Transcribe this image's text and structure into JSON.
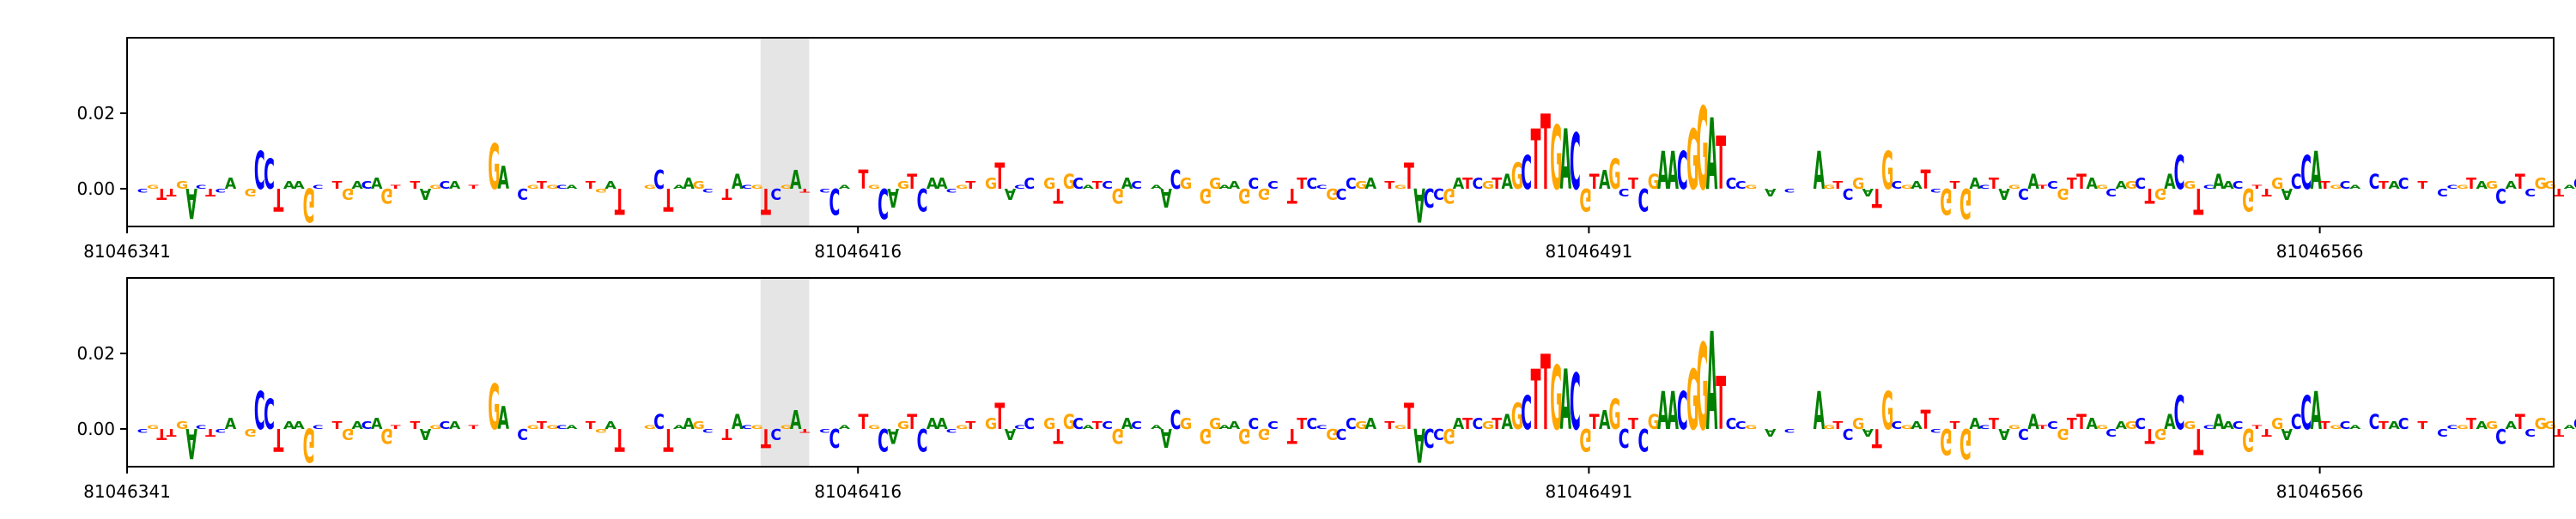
{
  "chart_data": [
    {
      "type": "sequence-logo",
      "ylim": [
        -0.01,
        0.04
      ],
      "yticks": [
        0.0,
        0.02
      ],
      "ytick_labels": [
        "0.00",
        "0.02"
      ],
      "xlim": [
        81046341,
        81046590
      ],
      "xticks": [
        81046341,
        81046416,
        81046491,
        81046566
      ],
      "xtick_labels": [
        "81046341",
        "81046416",
        "81046491",
        "81046566"
      ],
      "highlight_region": [
        81046406,
        81046411
      ],
      "sequence": "ACGTTGACTCATGCCTAAGCTTGACAGTCTAGCATTCGAACGTGCACTGATCGGCTAAGCTTACGTCGATGCCATTGCAGTCAACGTGGTACCAGTGCATCGACAAACGGGGAAGCGCTTTCCGCCGACTGTACCGATCGTAGCTTGACGTAGCTCGAACGGATCCGTAGCTCAGTCGATGCGATCGTGACTAGCATCGTTAGCAGCTGACGTCAACGTTGACCATGCAGCTACGTACCGTAGCATCGGTACC",
      "contributions": [
        0.0,
        -0.001,
        0.001,
        -0.003,
        -0.002,
        0.002,
        -0.008,
        0.001,
        -0.002,
        -0.001,
        0.003,
        0.0,
        -0.002,
        0.01,
        0.008,
        -0.006,
        0.002,
        0.002,
        -0.009,
        0.001,
        0.0,
        0.002,
        -0.003,
        0.002,
        0.002,
        0.003,
        -0.004,
        0.001,
        0.0,
        0.002,
        -0.003,
        0.001,
        0.002,
        0.002,
        0.0,
        0.001,
        0.0,
        0.012,
        0.006,
        0.0,
        -0.003,
        0.001,
        0.002,
        0.001,
        0.001,
        0.001,
        0.0,
        0.002,
        -0.001,
        0.002,
        -0.007,
        0.0,
        0.0,
        0.001,
        0.005,
        -0.006,
        0.001,
        0.003,
        0.002,
        -0.001,
        0.0,
        -0.003,
        0.004,
        0.001,
        0.001,
        -0.007,
        -0.003,
        0.001,
        0.005,
        -0.001,
        0.0,
        -0.001,
        -0.007,
        0.001,
        0.0,
        0.005,
        0.001,
        -0.008,
        -0.005,
        0.002,
        0.004,
        -0.006,
        0.003,
        0.003,
        -0.001,
        0.001,
        0.002,
        0.0,
        0.003,
        0.007,
        -0.003,
        0.001,
        0.003,
        0.0,
        0.003,
        -0.004,
        0.004,
        0.003,
        0.001,
        0.002,
        0.002,
        -0.004,
        0.003,
        0.002,
        0.0,
        0.001,
        -0.005,
        0.005,
        0.003,
        0.0,
        -0.004,
        0.003,
        0.001,
        0.002,
        -0.004,
        0.003,
        -0.003,
        0.002,
        0.0,
        -0.004,
        0.003,
        0.003,
        0.001,
        -0.003,
        -0.003,
        0.003,
        0.002,
        0.003,
        0.0,
        0.002,
        0.001,
        0.007,
        -0.009,
        -0.005,
        -0.003,
        -0.004,
        0.003,
        0.003,
        0.003,
        0.002,
        0.003,
        0.004,
        0.007,
        0.009,
        0.016,
        0.02,
        0.017,
        0.016,
        0.015,
        -0.006,
        0.004,
        0.005,
        0.008,
        -0.002,
        0.003,
        -0.006,
        0.004,
        0.01,
        0.01,
        0.01,
        0.016,
        0.022,
        0.019,
        0.014,
        0.003,
        0.002,
        0.001,
        0.0,
        -0.002,
        0.0,
        -0.001,
        0.0,
        0.0,
        0.01,
        0.001,
        0.002,
        -0.003,
        0.003,
        -0.002,
        -0.005,
        0.01,
        0.002,
        0.001,
        0.002,
        0.005,
        -0.001,
        -0.007,
        0.002,
        -0.008,
        0.003,
        0.001,
        0.003,
        -0.003,
        0.001,
        -0.003,
        0.004,
        0.001,
        0.002,
        -0.003,
        0.003,
        0.004,
        0.003,
        0.001,
        -0.002,
        0.002,
        0.002,
        0.003,
        -0.004,
        -0.003,
        0.004,
        0.009,
        0.002,
        -0.007,
        0.001,
        0.004,
        0.002,
        0.002,
        -0.006,
        0.001,
        -0.002,
        0.003,
        -0.003,
        0.004,
        0.009,
        0.01,
        0.002,
        0.001,
        0.002,
        0.001,
        0.0,
        0.004,
        0.002,
        0.002,
        0.003,
        0.0,
        0.002,
        0.0,
        -0.002,
        0.001,
        0.001,
        0.003,
        0.002,
        0.002,
        -0.004,
        0.002,
        0.004,
        -0.002,
        0.003,
        0.002,
        -0.002,
        0.001,
        0.003,
        0.002,
        0.002,
        0.003,
        -0.002
      ]
    },
    {
      "type": "sequence-logo",
      "ylim": [
        -0.01,
        0.04
      ],
      "yticks": [
        0.0,
        0.02
      ],
      "ytick_labels": [
        "0.00",
        "0.02"
      ],
      "xlim": [
        81046341,
        81046590
      ],
      "xticks": [
        81046341,
        81046416,
        81046491,
        81046566
      ],
      "xtick_labels": [
        "81046341",
        "81046416",
        "81046491",
        "81046566"
      ],
      "highlight_region": [
        81046406,
        81046411
      ],
      "sequence": "ACGTTGACTCATGCCTAAGCTTGACAGTCTAGCATTCGAACGTGCACTGATCGGCTAAGCTTACGTCGATGCCATTGCAGTCAACGTGGTACCAGTGCATCGACAAACGGGGAAGCGCTTTCCGCCGACTGTACCGATCGTAGCTTGACGTAGCTCGAACGGATCCGTAGCTCAGTCGATGCGATCGTGACTAGCATCGTTAGCAGCTGACGTCAACGTTGACCATGCAGCTACGTACCGTAGCATCGGTACC",
      "contributions": [
        0.0,
        -0.001,
        0.001,
        -0.003,
        -0.002,
        0.002,
        -0.008,
        0.001,
        -0.002,
        -0.001,
        0.003,
        0.0,
        -0.002,
        0.01,
        0.008,
        -0.006,
        0.002,
        0.002,
        -0.009,
        0.001,
        0.0,
        0.002,
        -0.003,
        0.002,
        0.002,
        0.003,
        -0.004,
        0.001,
        0.0,
        0.002,
        -0.003,
        0.001,
        0.002,
        0.002,
        0.0,
        0.001,
        0.0,
        0.012,
        0.006,
        0.0,
        -0.003,
        0.001,
        0.002,
        0.001,
        0.001,
        0.001,
        0.0,
        0.002,
        -0.001,
        0.002,
        -0.006,
        0.0,
        0.0,
        0.001,
        0.004,
        -0.006,
        0.001,
        0.003,
        0.002,
        -0.001,
        0.0,
        -0.003,
        0.004,
        0.001,
        0.001,
        -0.005,
        -0.003,
        0.001,
        0.005,
        -0.001,
        0.0,
        -0.001,
        -0.005,
        0.001,
        0.0,
        0.004,
        0.001,
        -0.006,
        -0.004,
        0.002,
        0.004,
        -0.006,
        0.003,
        0.003,
        -0.001,
        0.001,
        0.002,
        0.0,
        0.003,
        0.007,
        -0.003,
        0.001,
        0.003,
        0.0,
        0.003,
        -0.004,
        0.004,
        0.003,
        0.001,
        0.002,
        0.002,
        -0.004,
        0.003,
        0.002,
        0.0,
        0.001,
        -0.005,
        0.005,
        0.003,
        0.0,
        -0.004,
        0.003,
        0.001,
        0.002,
        -0.004,
        0.003,
        -0.003,
        0.002,
        0.0,
        -0.004,
        0.003,
        0.003,
        0.001,
        -0.003,
        -0.003,
        0.003,
        0.002,
        0.003,
        0.0,
        0.002,
        0.001,
        0.007,
        -0.009,
        -0.005,
        -0.003,
        -0.004,
        0.003,
        0.003,
        0.003,
        0.002,
        0.003,
        0.004,
        0.007,
        0.009,
        0.016,
        0.02,
        0.017,
        0.016,
        0.015,
        -0.006,
        0.004,
        0.005,
        0.008,
        -0.005,
        0.003,
        -0.006,
        0.004,
        0.01,
        0.01,
        0.01,
        0.016,
        0.023,
        0.026,
        0.014,
        0.003,
        0.002,
        0.001,
        0.0,
        -0.002,
        0.0,
        -0.001,
        0.0,
        0.0,
        0.01,
        0.001,
        0.002,
        -0.003,
        0.003,
        -0.002,
        -0.005,
        0.01,
        0.002,
        0.001,
        0.002,
        0.005,
        -0.001,
        -0.007,
        0.002,
        -0.008,
        0.003,
        0.001,
        0.003,
        -0.003,
        0.001,
        -0.003,
        0.004,
        0.001,
        0.002,
        -0.003,
        0.003,
        0.004,
        0.003,
        0.001,
        -0.002,
        0.002,
        0.002,
        0.003,
        -0.004,
        -0.003,
        0.004,
        0.009,
        0.002,
        -0.007,
        0.001,
        0.004,
        0.002,
        0.002,
        -0.006,
        0.001,
        -0.002,
        0.003,
        -0.003,
        0.004,
        0.009,
        0.01,
        0.002,
        0.001,
        0.002,
        0.001,
        0.0,
        0.004,
        0.002,
        0.002,
        0.003,
        0.0,
        0.002,
        0.0,
        -0.002,
        0.001,
        0.001,
        0.003,
        0.002,
        0.002,
        -0.004,
        0.002,
        0.004,
        -0.002,
        0.003,
        0.002,
        -0.002,
        0.001,
        0.003,
        0.002,
        0.002,
        0.003,
        -0.002
      ]
    }
  ],
  "colors": {
    "A": "#008000",
    "C": "#0000ff",
    "G": "#ffa500",
    "T": "#ff0000",
    "highlight": "#e5e5e5",
    "axis": "#000000"
  }
}
